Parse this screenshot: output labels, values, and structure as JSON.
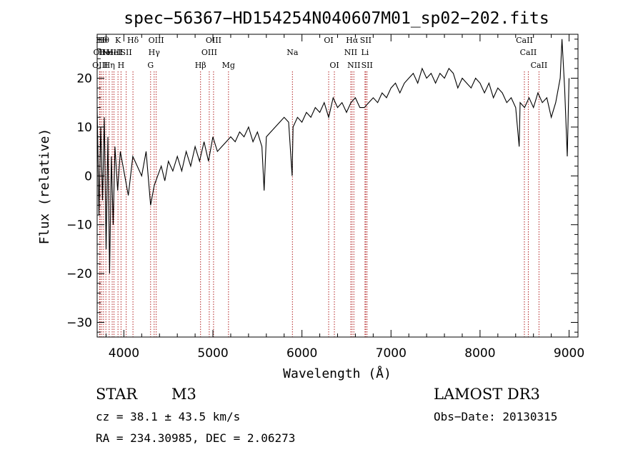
{
  "chart_data": {
    "type": "line",
    "title": "spec−56367−HD154254N040607M01_sp02−202.fits",
    "xlabel": "Wavelength (Å)",
    "ylabel": "Flux (relative)",
    "xlim": [
      3700,
      9100
    ],
    "ylim": [
      -33,
      29
    ],
    "xticks": [
      4000,
      5000,
      6000,
      7000,
      8000,
      9000
    ],
    "yticks": [
      -30,
      -20,
      -10,
      0,
      10,
      20
    ],
    "ytick_labels": [
      "−30",
      "−20",
      "−10",
      "0",
      "10",
      "20"
    ],
    "grid": false,
    "series": [
      {
        "name": "flux",
        "x": [
          3700,
          3720,
          3740,
          3760,
          3780,
          3800,
          3820,
          3840,
          3860,
          3880,
          3900,
          3930,
          3960,
          4000,
          4050,
          4100,
          4150,
          4200,
          4250,
          4300,
          4340,
          4380,
          4420,
          4460,
          4500,
          4550,
          4600,
          4650,
          4700,
          4750,
          4800,
          4850,
          4900,
          4950,
          5000,
          5050,
          5100,
          5150,
          5200,
          5250,
          5300,
          5350,
          5400,
          5450,
          5500,
          5550,
          5575,
          5600,
          5650,
          5700,
          5750,
          5800,
          5850,
          5890,
          5900,
          5950,
          6000,
          6050,
          6100,
          6150,
          6200,
          6250,
          6300,
          6350,
          6400,
          6450,
          6500,
          6550,
          6600,
          6650,
          6700,
          6750,
          6800,
          6850,
          6900,
          6950,
          7000,
          7050,
          7100,
          7150,
          7200,
          7250,
          7300,
          7350,
          7400,
          7450,
          7500,
          7550,
          7600,
          7650,
          7700,
          7750,
          7800,
          7850,
          7900,
          7950,
          8000,
          8050,
          8100,
          8150,
          8200,
          8250,
          8300,
          8350,
          8400,
          8440,
          8450,
          8500,
          8550,
          8600,
          8650,
          8700,
          8750,
          8800,
          8850,
          8900,
          8920,
          8950,
          8980,
          9000
        ],
        "y": [
          14,
          -8,
          10,
          -5,
          12,
          -15,
          8,
          -20,
          4,
          -10,
          6,
          -3,
          5,
          1,
          -4,
          4,
          2,
          0,
          5,
          -6,
          -2,
          0,
          2,
          -1,
          3,
          1,
          4,
          1,
          5,
          2,
          6,
          3,
          7,
          3,
          8,
          5,
          6,
          7,
          8,
          7,
          9,
          8,
          10,
          7,
          9,
          6,
          -3,
          8,
          9,
          10,
          11,
          12,
          11,
          0,
          10,
          12,
          11,
          13,
          12,
          14,
          13,
          15,
          12,
          16,
          14,
          15,
          13,
          15,
          16,
          14,
          14,
          15,
          16,
          15,
          17,
          16,
          18,
          19,
          17,
          19,
          20,
          21,
          19,
          22,
          20,
          21,
          19,
          21,
          20,
          22,
          21,
          18,
          20,
          19,
          18,
          20,
          19,
          17,
          19,
          16,
          18,
          17,
          15,
          16,
          14,
          6,
          15,
          14,
          16,
          14,
          17,
          15,
          16,
          12,
          15,
          20,
          28,
          18,
          4,
          20
        ]
      }
    ],
    "lines": [
      {
        "wl": 3727,
        "row": 1,
        "label": "OII"
      },
      {
        "wl": 3733,
        "row": 2,
        "label": "OIII"
      },
      {
        "wl": 3750,
        "row": 0,
        "label": "Hθ"
      },
      {
        "wl": 3771,
        "row": 0,
        "label": "Hθ"
      },
      {
        "wl": 3798,
        "row": 1,
        "label": "HeI"
      },
      {
        "wl": 3835,
        "row": 2,
        "label": "Hη"
      },
      {
        "wl": 3869,
        "row": 1,
        "label": "NeIII"
      },
      {
        "wl": 3889,
        "row": 1,
        "label": "HeI"
      },
      {
        "wl": 3934,
        "row": 0,
        "label": "K"
      },
      {
        "wl": 3968,
        "row": 2,
        "label": "H"
      },
      {
        "wl": 4026,
        "row": 1,
        "label": "SII"
      },
      {
        "wl": 4102,
        "row": 0,
        "label": "Hδ"
      },
      {
        "wl": 4300,
        "row": 2,
        "label": "G"
      },
      {
        "wl": 4340,
        "row": 1,
        "label": "Hγ"
      },
      {
        "wl": 4363,
        "row": 0,
        "label": "OIII"
      },
      {
        "wl": 4861,
        "row": 2,
        "label": "Hβ"
      },
      {
        "wl": 4959,
        "row": 1,
        "label": "OIII"
      },
      {
        "wl": 5007,
        "row": 0,
        "label": "OIII"
      },
      {
        "wl": 5175,
        "row": 2,
        "label": "Mg"
      },
      {
        "wl": 5893,
        "row": 1,
        "label": "Na"
      },
      {
        "wl": 6300,
        "row": 0,
        "label": "OI"
      },
      {
        "wl": 6364,
        "row": 2,
        "label": "OI"
      },
      {
        "wl": 6548,
        "row": 1,
        "label": "NII"
      },
      {
        "wl": 6563,
        "row": 0,
        "label": "Hα"
      },
      {
        "wl": 6583,
        "row": 2,
        "label": "NII"
      },
      {
        "wl": 6708,
        "row": 1,
        "label": "Li"
      },
      {
        "wl": 6716,
        "row": 0,
        "label": "SII"
      },
      {
        "wl": 6731,
        "row": 2,
        "label": "SII"
      },
      {
        "wl": 8498,
        "row": 0,
        "label": "CaII"
      },
      {
        "wl": 8542,
        "row": 1,
        "label": "CaII"
      },
      {
        "wl": 8662,
        "row": 2,
        "label": "CaII"
      }
    ]
  },
  "info": {
    "class": "STAR",
    "subclass": "M3",
    "survey": "LAMOST DR3",
    "cz": "cz = 38.1 ± 43.5 km/s",
    "obsdate": "Obs−Date: 20130315",
    "radec": "RA = 234.30985, DEC =   2.06273"
  }
}
